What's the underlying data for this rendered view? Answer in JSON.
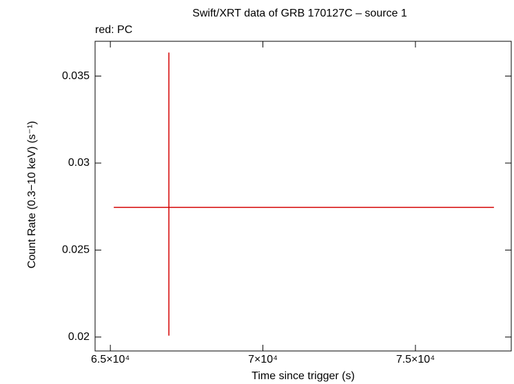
{
  "chart_data": {
    "type": "errorbar_scatter",
    "title": "Swift/XRT data of GRB 170127C – source 1",
    "subtitle": "red: PC",
    "x_label": "Time since trigger (s)",
    "y_label": "Count Rate (0.3−10 keV) (s⁻¹)",
    "xlim": [
      64500,
      78140
    ],
    "ylim": [
      0.0192,
      0.037
    ],
    "xticks": [
      {
        "value": 65000,
        "label": "6.5×10⁴"
      },
      {
        "value": 70000,
        "label": "7×10⁴"
      },
      {
        "value": 75000,
        "label": "7.5×10⁴"
      }
    ],
    "yticks": [
      0.02,
      0.025,
      0.03,
      0.035
    ],
    "series": [
      {
        "color": "#d40000",
        "x": [
          66919
        ],
        "x_err_low": [
          1806
        ],
        "x_err_high": [
          10654
        ],
        "values": [
          0.02745
        ],
        "y_err_low": [
          0.00737
        ],
        "y_err_high": [
          0.0089
        ]
      }
    ]
  }
}
